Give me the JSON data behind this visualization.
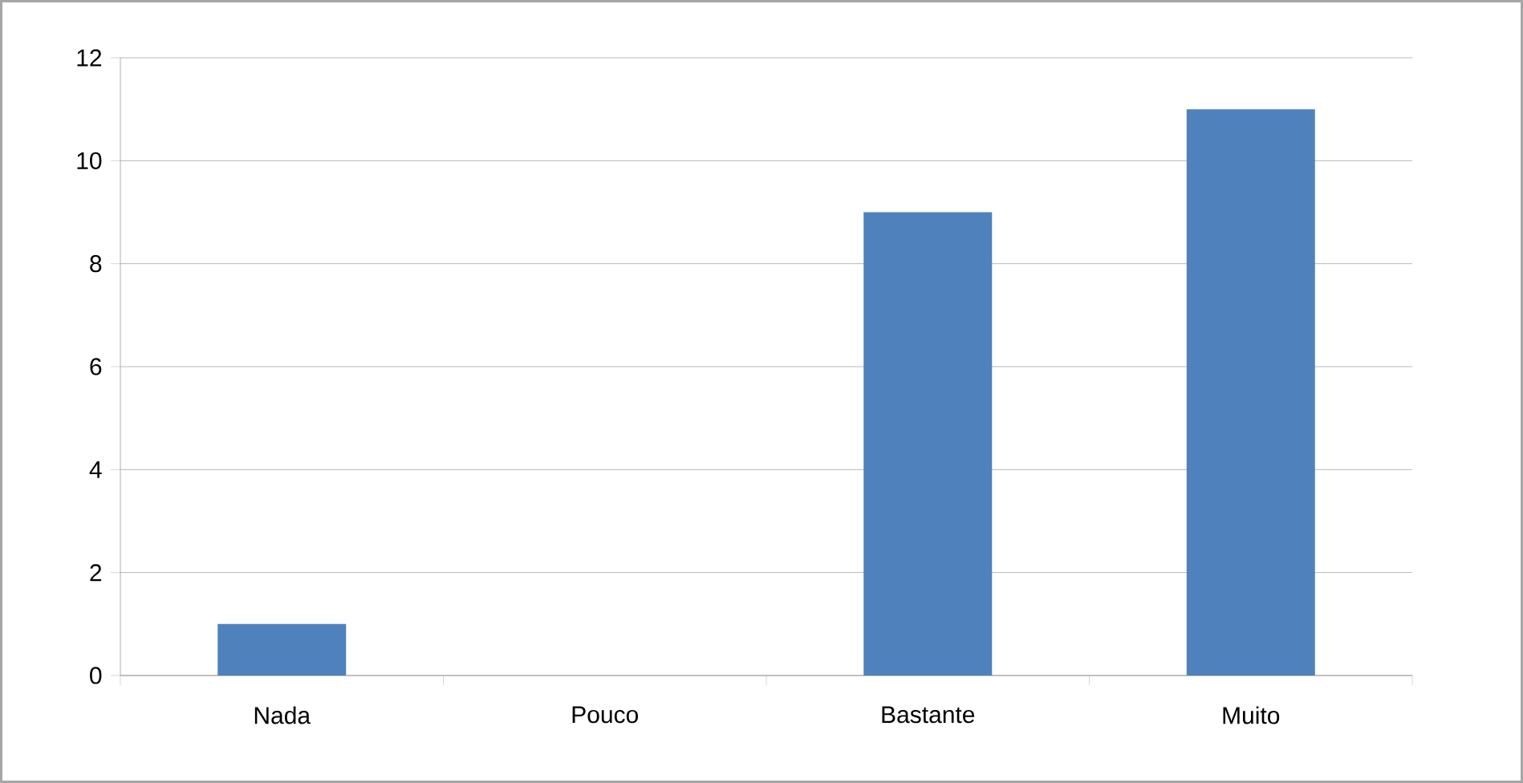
{
  "chart_data": {
    "type": "bar",
    "categories": [
      "Nada",
      "Pouco",
      "Bastante",
      "Muito"
    ],
    "values": [
      1,
      0,
      9,
      11
    ],
    "color": "#4f81bd",
    "ylim": [
      0,
      12
    ],
    "yticks": [
      0,
      2,
      4,
      6,
      8,
      10,
      12
    ],
    "grid": "y"
  }
}
